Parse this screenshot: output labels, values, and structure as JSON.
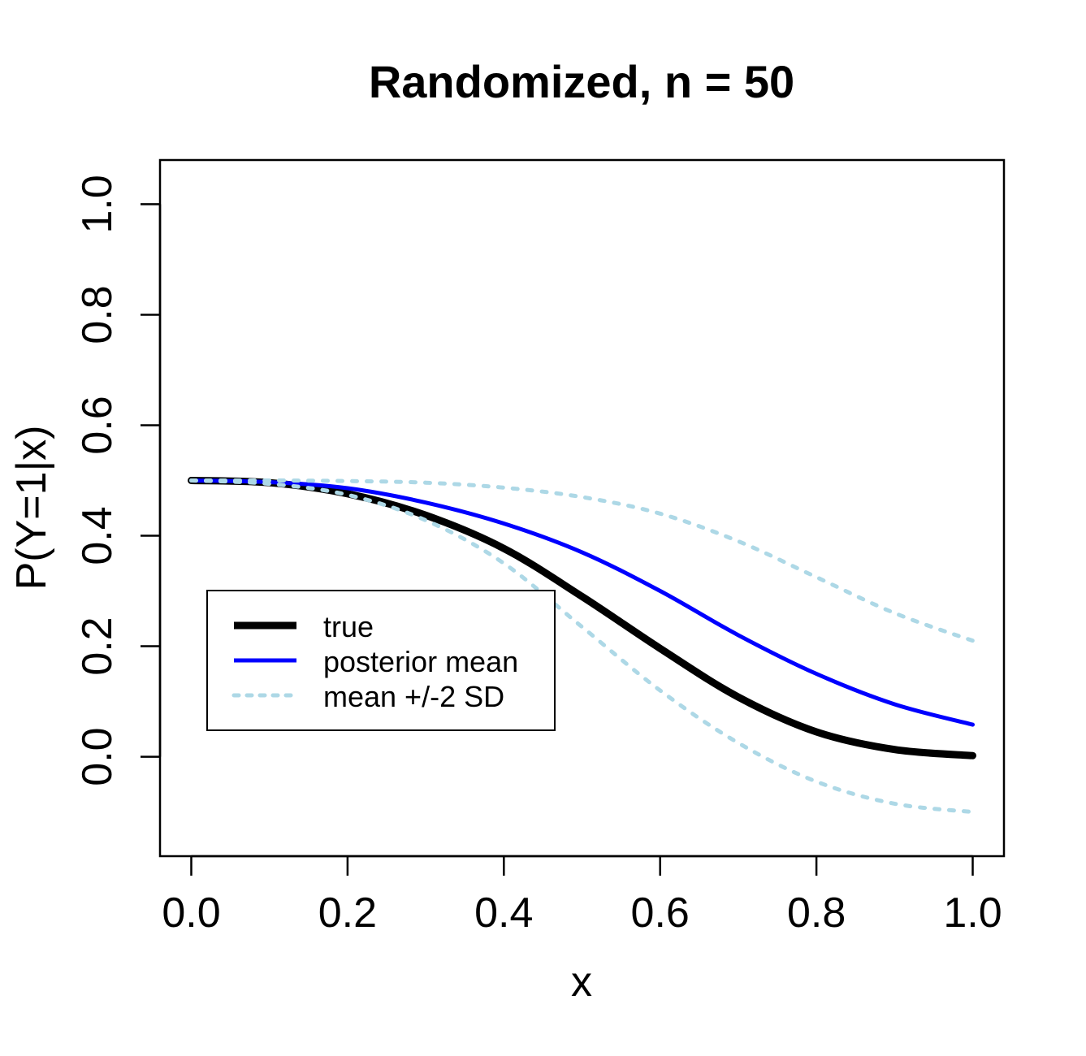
{
  "chart_data": {
    "type": "line",
    "title": "Randomized, n =  50",
    "xlabel": "x",
    "ylabel": "P(Y=1|x)",
    "xlim": [
      -0.04,
      1.04
    ],
    "ylim": [
      -0.18,
      1.08
    ],
    "xticks": [
      0.0,
      0.2,
      0.4,
      0.6,
      0.8,
      1.0
    ],
    "xtick_labels": [
      "0.0",
      "0.2",
      "0.4",
      "0.6",
      "0.8",
      "1.0"
    ],
    "yticks": [
      0.0,
      0.2,
      0.4,
      0.6,
      0.8,
      1.0
    ],
    "ytick_labels": [
      "0.0",
      "0.2",
      "0.4",
      "0.6",
      "0.8",
      "1.0"
    ],
    "legend": {
      "position": "center-left",
      "entries": [
        {
          "label": "true",
          "series": "true"
        },
        {
          "label": "posterior mean",
          "series": "posterior_mean"
        },
        {
          "label": "mean +/-2 SD",
          "series": "upper_band"
        }
      ]
    },
    "x": [
      0.0,
      0.1,
      0.2,
      0.3,
      0.4,
      0.5,
      0.6,
      0.7,
      0.8,
      0.9,
      1.0
    ],
    "series": [
      {
        "key": "true",
        "name": "true",
        "color": "#000000",
        "style": "solid",
        "width": 9,
        "values": [
          0.5,
          0.496,
          0.476,
          0.437,
          0.377,
          0.29,
          0.196,
          0.108,
          0.045,
          0.013,
          0.002
        ]
      },
      {
        "key": "posterior_mean",
        "name": "posterior mean",
        "color": "#0000ff",
        "style": "solid",
        "width": 5,
        "values": [
          0.5,
          0.497,
          0.486,
          0.46,
          0.422,
          0.37,
          0.3,
          0.22,
          0.15,
          0.095,
          0.058
        ]
      },
      {
        "key": "upper_band",
        "name": "mean +2 SD",
        "color": "#add8e6",
        "style": "dotted",
        "width": 5,
        "values": [
          0.5,
          0.5,
          0.499,
          0.496,
          0.487,
          0.47,
          0.44,
          0.39,
          0.325,
          0.26,
          0.21
        ]
      },
      {
        "key": "lower_band",
        "name": "mean -2 SD",
        "color": "#add8e6",
        "style": "dotted",
        "width": 5,
        "values": [
          0.5,
          0.494,
          0.474,
          0.428,
          0.35,
          0.235,
          0.12,
          0.025,
          -0.045,
          -0.085,
          -0.1
        ]
      }
    ]
  }
}
